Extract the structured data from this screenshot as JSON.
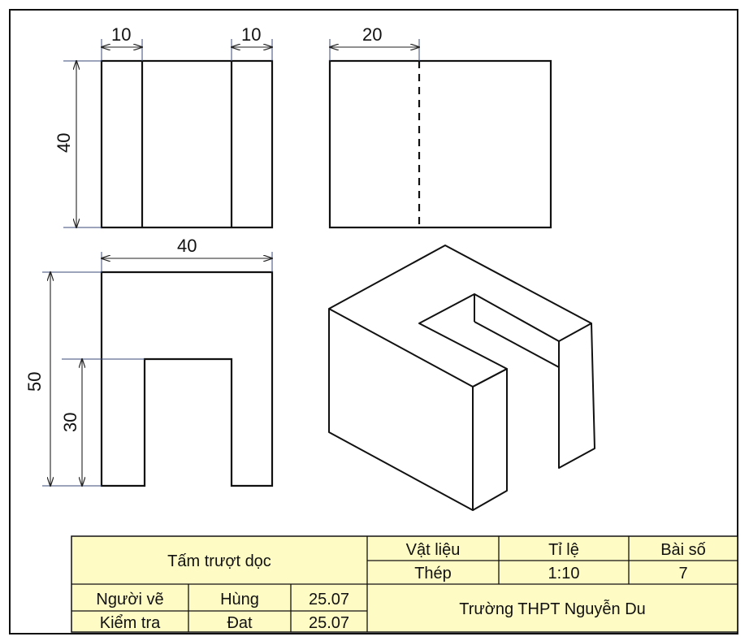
{
  "drawing": {
    "dimensions": {
      "front_left_width": "10",
      "front_right_width": "10",
      "front_height": "40",
      "side_dash_offset": "20",
      "top_width": "40",
      "top_depth": "50",
      "slot_depth": "30"
    }
  },
  "title_block": {
    "part_name": "Tấm trượt dọc",
    "material_label": "Vật liệu",
    "scale_label": "Tỉ lệ",
    "sheet_label": "Bài số",
    "material_value": "Thép",
    "scale_value": "1:10",
    "sheet_value": "7",
    "drawn_by_label": "Người vẽ",
    "drawn_by_name": "Hùng",
    "drawn_by_date": "25.07",
    "checked_by_label": "Kiểm tra",
    "checked_by_name": "Đat",
    "checked_by_date": "25.07",
    "school": "Trường THPT Nguyễn Du"
  },
  "colors": {
    "title_block_fill": "#fffbc4",
    "ink": "#111111",
    "dimension_line": "#222222"
  }
}
